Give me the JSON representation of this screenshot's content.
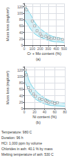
{
  "chart_data": [
    {
      "type": "scatter",
      "xlabel": "Cr + Mo content (%)",
      "ylabel": "Mass loss (mg/cm²)",
      "annotations": [
        "(a)"
      ],
      "xlim": [
        0,
        500
      ],
      "ylim": [
        0,
        130
      ],
      "xticks": [
        0,
        100,
        200,
        300,
        400,
        500
      ],
      "yticks": [
        0,
        20,
        40,
        60,
        80,
        100,
        120
      ],
      "grid": true,
      "series": [
        {
          "type": "band",
          "x": [
            0,
            30,
            80,
            150,
            250,
            350,
            450,
            500
          ],
          "upper": [
            125,
            115,
            95,
            65,
            42,
            28,
            22,
            18
          ],
          "lower": [
            80,
            70,
            50,
            32,
            20,
            12,
            10,
            8
          ],
          "color": "#55c8e0",
          "fill_color": "#aee4f0"
        },
        {
          "type": "scatter",
          "x": [
            10,
            30,
            100,
            130,
            160,
            200,
            220,
            270,
            300,
            310,
            340,
            380,
            430,
            480
          ],
          "values": [
            120,
            110,
            75,
            60,
            45,
            35,
            28,
            28,
            22,
            25,
            20,
            22,
            20,
            18
          ],
          "color": "#ffffff",
          "edge_color": "#555555",
          "marker": "square"
        }
      ]
    },
    {
      "type": "scatter",
      "xlabel": "Ni content (%)",
      "ylabel": "Mass loss (mg/cm²)",
      "annotations": [
        "(b)"
      ],
      "xlim": [
        0,
        80
      ],
      "ylim": [
        0,
        130
      ],
      "xticks": [
        0,
        20,
        40,
        60,
        80
      ],
      "yticks": [
        0,
        20,
        40,
        60,
        80,
        100,
        120
      ],
      "grid": true,
      "series": [
        {
          "type": "band",
          "x": [
            0,
            5,
            10,
            20,
            35,
            50,
            65,
            80
          ],
          "upper": [
            125,
            110,
            85,
            60,
            38,
            25,
            20,
            17
          ],
          "lower": [
            85,
            70,
            52,
            32,
            18,
            10,
            8,
            6
          ],
          "color": "#55c8e0",
          "fill_color": "#aee4f0"
        },
        {
          "type": "scatter",
          "x": [
            2,
            4,
            8,
            12,
            18,
            22,
            30,
            35,
            42,
            45,
            48,
            55,
            60,
            65
          ],
          "values": [
            120,
            105,
            65,
            55,
            45,
            38,
            30,
            28,
            25,
            22,
            18,
            20,
            15,
            18
          ],
          "color": "#ffffff",
          "edge_color": "#555555",
          "marker": "square"
        }
      ]
    }
  ],
  "annotations": [
    "Temperature: 980 C",
    "Duration: 96 h",
    "HCl: 1,000 ppm by volume",
    "Chlorides in ash: 40.1 % by mass",
    "Melting temperature of ash: 530 C"
  ]
}
